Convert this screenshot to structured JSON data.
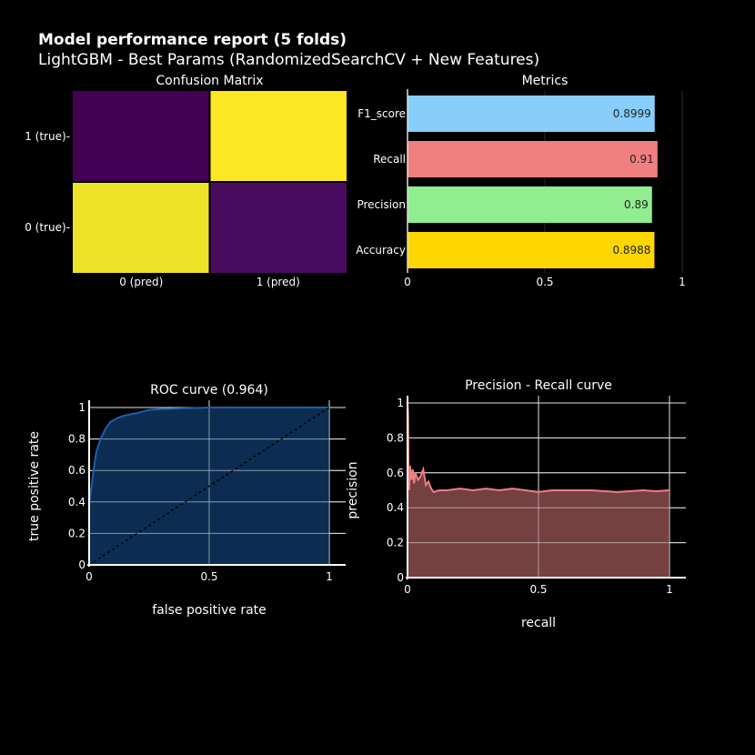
{
  "report": {
    "title": "Model performance report (5 folds)",
    "subtitle": "LightGBM - Best Params (RandomizedSearchCV + New Features)"
  },
  "chart_data": [
    {
      "type": "heatmap",
      "title": "Confusion Matrix",
      "x_labels": [
        "0 (pred)",
        "1 (pred)"
      ],
      "y_labels": [
        "1 (true)",
        "0 (true)"
      ],
      "cells": [
        {
          "row": 0,
          "col": 0,
          "level": 0.0,
          "color": "#440154"
        },
        {
          "row": 0,
          "col": 1,
          "level": 1.0,
          "color": "#fde725"
        },
        {
          "row": 1,
          "col": 0,
          "level": 0.97,
          "color": "#ede42a"
        },
        {
          "row": 1,
          "col": 1,
          "level": 0.02,
          "color": "#470c5e"
        }
      ]
    },
    {
      "type": "bar",
      "orientation": "horizontal",
      "title": "Metrics",
      "categories": [
        "F1_score",
        "Recall",
        "Precision",
        "Accuracy"
      ],
      "values": [
        0.8999,
        0.91,
        0.89,
        0.8988
      ],
      "value_labels": [
        "0.8999",
        "0.91",
        "0.89",
        "0.8988"
      ],
      "colors": [
        "#87cefa",
        "#f08080",
        "#90ee90",
        "#ffd700"
      ],
      "xlim": [
        0,
        1
      ],
      "x_ticks": [
        0,
        0.5,
        1
      ],
      "x_tick_labels": [
        "0",
        "0.5",
        "1"
      ]
    },
    {
      "type": "area",
      "title": "ROC curve (0.964)",
      "xlabel": "false positive rate",
      "ylabel": "true positive rate",
      "xlim": [
        0,
        1
      ],
      "ylim": [
        0,
        1
      ],
      "x_ticks": [
        0,
        0.5,
        1
      ],
      "x_tick_labels": [
        "0",
        "0.5",
        "1"
      ],
      "y_ticks": [
        0,
        0.2,
        0.4,
        0.6,
        0.8,
        1
      ],
      "y_tick_labels": [
        "0",
        "0.2",
        "0.4",
        "0.6",
        "0.8",
        "1"
      ],
      "line_color": "#1f5fa8",
      "fill_color": "#0d2f55",
      "x": [
        0,
        0,
        0.01,
        0.02,
        0.03,
        0.05,
        0.07,
        0.09,
        0.12,
        0.15,
        0.2,
        0.25,
        0.3,
        0.4,
        0.5,
        0.6,
        0.8,
        1
      ],
      "y": [
        0,
        0.38,
        0.5,
        0.62,
        0.72,
        0.81,
        0.87,
        0.91,
        0.935,
        0.95,
        0.965,
        0.985,
        0.99,
        0.995,
        1,
        1,
        1,
        1
      ],
      "baseline_x": [
        0,
        1
      ],
      "baseline_y": [
        0,
        1
      ]
    },
    {
      "type": "area",
      "title": "Precision - Recall curve",
      "xlabel": "recall",
      "ylabel": "precision",
      "xlim": [
        0,
        1
      ],
      "ylim": [
        0,
        1
      ],
      "x_ticks": [
        0,
        0.5,
        1
      ],
      "x_tick_labels": [
        "0",
        "0.5",
        "1"
      ],
      "y_ticks": [
        0,
        0.2,
        0.4,
        0.6,
        0.8,
        1
      ],
      "y_tick_labels": [
        "0",
        "0.2",
        "0.4",
        "0.6",
        "0.8",
        "1"
      ],
      "line_color": "#f08080",
      "fill_color": "#7a4343",
      "x": [
        0,
        0.002,
        0.004,
        0.006,
        0.01,
        0.015,
        0.02,
        0.025,
        0.03,
        0.04,
        0.05,
        0.06,
        0.07,
        0.08,
        0.09,
        0.1,
        0.12,
        0.15,
        0.2,
        0.25,
        0.3,
        0.35,
        0.4,
        0.45,
        0.5,
        0.55,
        0.6,
        0.7,
        0.8,
        0.9,
        0.95,
        1
      ],
      "y": [
        1,
        0.95,
        0.6,
        0.5,
        0.64,
        0.56,
        0.62,
        0.54,
        0.6,
        0.56,
        0.58,
        0.62,
        0.53,
        0.55,
        0.51,
        0.49,
        0.5,
        0.5,
        0.51,
        0.5,
        0.51,
        0.5,
        0.51,
        0.5,
        0.49,
        0.5,
        0.5,
        0.5,
        0.49,
        0.5,
        0.495,
        0.5
      ]
    }
  ]
}
